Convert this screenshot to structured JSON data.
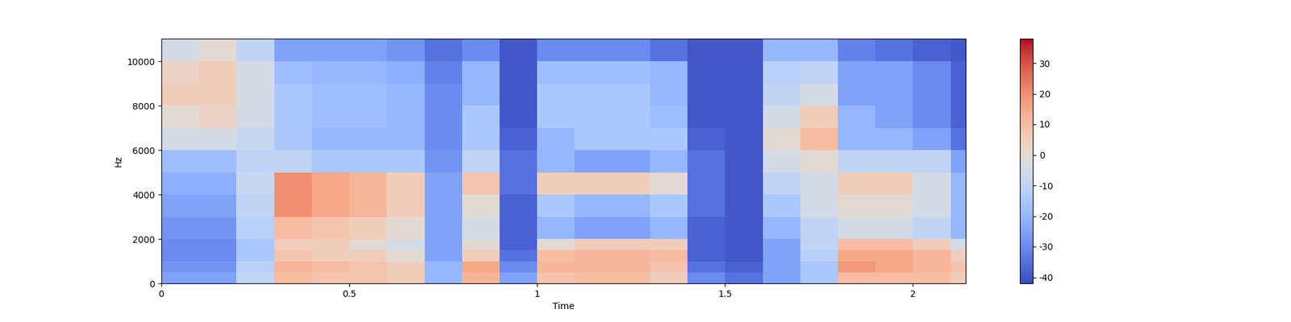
{
  "chart_data": {
    "type": "heatmap",
    "x_label": "Time",
    "y_label": "Hz",
    "color": "coolwarm",
    "xlim": [
      0,
      2.14
    ],
    "xticks": [
      0,
      0.5,
      1,
      1.5,
      2
    ],
    "ylim": [
      0,
      11025
    ],
    "yticks": [
      0,
      2000,
      4000,
      6000,
      8000,
      10000
    ],
    "x_edges": [
      0,
      0.1,
      0.2,
      0.3,
      0.4,
      0.5,
      0.6,
      0.7,
      0.8,
      0.9,
      1.0,
      1.1,
      1.2,
      1.3,
      1.4,
      1.5,
      1.6,
      1.7,
      1.8,
      1.9,
      2.0,
      2.1,
      2.14
    ],
    "y_edges": [
      0,
      500,
      1000,
      1500,
      2000,
      3000,
      4000,
      5000,
      6000,
      7000,
      8000,
      9000,
      10000,
      11025
    ],
    "cells": [
      [
        -25,
        -25,
        -10,
        10,
        8,
        8,
        5,
        -20,
        12,
        -25,
        8,
        10,
        10,
        5,
        -30,
        -35,
        -25,
        -15,
        10,
        10,
        10,
        5
      ],
      [
        -28,
        -28,
        -12,
        12,
        10,
        8,
        5,
        -20,
        15,
        -30,
        12,
        12,
        12,
        8,
        -35,
        -38,
        -25,
        -15,
        18,
        15,
        12,
        8
      ],
      [
        -30,
        -30,
        -15,
        8,
        5,
        5,
        0,
        -25,
        5,
        -35,
        10,
        12,
        12,
        10,
        -38,
        -40,
        -25,
        -12,
        15,
        15,
        12,
        5
      ],
      [
        -30,
        -30,
        -15,
        5,
        5,
        0,
        -5,
        -25,
        0,
        -38,
        0,
        5,
        5,
        5,
        -38,
        -40,
        -25,
        -10,
        10,
        10,
        5,
        -5
      ],
      [
        -28,
        -28,
        -12,
        10,
        8,
        5,
        0,
        -25,
        -5,
        -38,
        -20,
        -25,
        -25,
        -20,
        -38,
        -40,
        -20,
        -10,
        -5,
        -5,
        -10,
        -20
      ],
      [
        -25,
        -25,
        -10,
        20,
        15,
        12,
        5,
        -25,
        0,
        -38,
        -15,
        -20,
        -20,
        -15,
        -35,
        -40,
        -15,
        -5,
        0,
        0,
        -5,
        -20
      ],
      [
        -22,
        -22,
        -8,
        20,
        15,
        12,
        5,
        -25,
        8,
        -35,
        5,
        5,
        5,
        0,
        -35,
        -40,
        -10,
        -5,
        5,
        5,
        -5,
        -20
      ],
      [
        -18,
        -18,
        -10,
        -10,
        -15,
        -15,
        -15,
        -28,
        -10,
        -35,
        -20,
        -25,
        -25,
        -20,
        -35,
        -40,
        -5,
        0,
        -10,
        -10,
        -10,
        -25
      ],
      [
        -5,
        -5,
        -8,
        -15,
        -20,
        -20,
        -20,
        -30,
        -15,
        -38,
        -20,
        -15,
        -15,
        -15,
        -38,
        -40,
        0,
        10,
        -20,
        -20,
        -25,
        -35
      ],
      [
        0,
        3,
        -5,
        -15,
        -18,
        -18,
        -20,
        -30,
        -15,
        -40,
        -15,
        -15,
        -15,
        -18,
        -40,
        -40,
        -5,
        5,
        -20,
        -25,
        -30,
        -38
      ],
      [
        5,
        5,
        -5,
        -15,
        -18,
        -18,
        -20,
        -30,
        -20,
        -40,
        -15,
        -15,
        -15,
        -20,
        -40,
        -40,
        -10,
        -5,
        -25,
        -25,
        -30,
        -38
      ],
      [
        3,
        5,
        -5,
        -18,
        -20,
        -20,
        -22,
        -32,
        -20,
        -40,
        -18,
        -18,
        -18,
        -20,
        -40,
        -40,
        -12,
        -10,
        -25,
        -25,
        -30,
        -38
      ],
      [
        -5,
        0,
        -10,
        -25,
        -25,
        -25,
        -28,
        -35,
        -30,
        -40,
        -30,
        -30,
        -30,
        -35,
        -40,
        -40,
        -20,
        -20,
        -32,
        -35,
        -38,
        -40
      ]
    ],
    "colorbar_range": [
      -42,
      38
    ],
    "colorbar_ticks": [
      -40,
      -30,
      -20,
      -10,
      0,
      10,
      20,
      30
    ]
  }
}
